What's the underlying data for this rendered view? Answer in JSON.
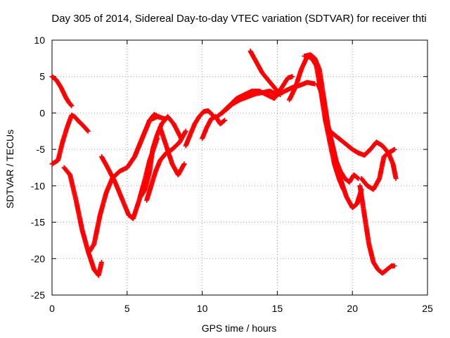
{
  "chart_data": {
    "type": "scatter",
    "title": "Day 305 of 2014, Sidereal Day-to-day VTEC variation (SDTVAR) for receiver thti",
    "xlabel": "GPS time / hours",
    "ylabel": "SDTVAR / TECUs",
    "xlim": [
      0,
      25
    ],
    "ylim": [
      -25,
      10
    ],
    "xticks": [
      0,
      5,
      10,
      15,
      20,
      25
    ],
    "yticks": [
      -25,
      -20,
      -15,
      -10,
      -5,
      0,
      5,
      10
    ],
    "xtick_labels": [
      "0",
      "5",
      "10",
      "15",
      "20",
      "25"
    ],
    "ytick_labels": [
      "-25",
      "-20",
      "-15",
      "-10",
      "-5",
      "0",
      "5",
      "10"
    ],
    "grid": true,
    "marker": "plus",
    "color": "#ff0000",
    "series": [
      {
        "x": [
          0.0,
          0.3,
          0.6,
          0.9,
          1.1,
          1.3
        ],
        "y": [
          5.0,
          4.5,
          3.5,
          2.2,
          1.5,
          1.0
        ]
      },
      {
        "x": [
          0.0,
          0.4,
          0.7,
          1.0,
          1.3,
          1.5,
          1.8,
          2.1,
          2.4
        ],
        "y": [
          -7.0,
          -6.5,
          -4.0,
          -2.0,
          -0.3,
          -0.5,
          -1.2,
          -1.8,
          -2.5
        ]
      },
      {
        "x": [
          0.8,
          1.2,
          1.6,
          2.0,
          2.4,
          2.8,
          3.1,
          3.3
        ],
        "y": [
          -7.5,
          -8.5,
          -12.0,
          -16.0,
          -19.0,
          -21.5,
          -22.3,
          -20.5
        ]
      },
      {
        "x": [
          2.5,
          2.8,
          3.2,
          3.6,
          4.0,
          4.5,
          5.0,
          5.5,
          6.0,
          6.5,
          7.0,
          7.5
        ],
        "y": [
          -19.0,
          -18.0,
          -14.0,
          -11.0,
          -9.0,
          -8.0,
          -7.5,
          -6.0,
          -3.5,
          -1.0,
          -0.5,
          -0.8
        ]
      },
      {
        "x": [
          3.3,
          3.7,
          4.2,
          4.7,
          5.1,
          5.4,
          5.8,
          6.2,
          6.5,
          7.0
        ],
        "y": [
          -6.0,
          -7.5,
          -9.5,
          -12.0,
          -14.0,
          -14.5,
          -12.0,
          -9.0,
          -6.5,
          -3.5
        ]
      },
      {
        "x": [
          5.0,
          5.5,
          5.8,
          6.1,
          6.5,
          6.8,
          7.2
        ],
        "y": [
          -7.5,
          -6.0,
          -4.5,
          -3.0,
          -1.0,
          -0.2,
          -0.6
        ]
      },
      {
        "x": [
          5.9,
          6.2,
          6.5,
          6.7,
          7.0,
          7.3,
          7.7,
          8.1,
          8.6
        ],
        "y": [
          -11.5,
          -10.5,
          -8.0,
          -5.0,
          -3.0,
          -1.5,
          -0.5,
          -1.5,
          -3.5
        ]
      },
      {
        "x": [
          7.2,
          7.6,
          8.0,
          8.4,
          8.8
        ],
        "y": [
          -2.0,
          -4.5,
          -7.0,
          -8.5,
          -7.0
        ]
      },
      {
        "x": [
          6.3,
          6.6,
          6.9,
          7.2,
          7.6,
          8.0,
          8.5,
          8.9
        ],
        "y": [
          -12.0,
          -10.0,
          -8.0,
          -6.5,
          -5.5,
          -5.0,
          -4.0,
          -2.5
        ]
      },
      {
        "x": [
          8.9,
          9.2,
          9.5,
          9.8,
          10.1,
          10.4,
          10.7
        ],
        "y": [
          -4.5,
          -3.0,
          -1.5,
          -0.5,
          0.2,
          0.3,
          -0.3
        ]
      },
      {
        "x": [
          10.0,
          10.3,
          10.6,
          10.9,
          11.2,
          11.5
        ],
        "y": [
          -3.5,
          -2.0,
          -0.8,
          -0.5,
          -1.5,
          -1.0
        ]
      },
      {
        "x": [
          11.0,
          11.5,
          12.0,
          12.5,
          13.0,
          13.5,
          14.0,
          14.5,
          15.0,
          15.5,
          16.0,
          16.5,
          17.0,
          17.5
        ],
        "y": [
          -0.5,
          0.3,
          1.2,
          1.8,
          2.2,
          2.6,
          2.8,
          3.0,
          2.5,
          3.0,
          3.5,
          3.8,
          4.2,
          4.0
        ]
      },
      {
        "x": [
          11.3,
          11.8,
          12.3,
          12.8,
          13.3,
          13.8,
          14.3,
          14.8,
          15.3,
          15.7,
          16.0
        ],
        "y": [
          0.0,
          1.0,
          2.0,
          2.5,
          3.0,
          3.0,
          2.5,
          2.0,
          3.5,
          4.8,
          5.0
        ]
      },
      {
        "x": [
          13.2,
          13.6,
          14.0,
          14.4,
          14.8,
          15.2
        ],
        "y": [
          8.5,
          7.0,
          5.5,
          4.5,
          3.5,
          2.5
        ]
      },
      {
        "x": [
          15.8,
          16.2,
          16.6,
          17.0,
          17.3,
          17.6,
          17.9,
          18.2,
          18.5,
          18.8,
          19.1,
          19.4
        ],
        "y": [
          1.8,
          3.5,
          6.0,
          7.8,
          7.5,
          6.5,
          3.0,
          -1.0,
          -4.0,
          -7.0,
          -9.0,
          -10.5
        ]
      },
      {
        "x": [
          16.8,
          17.2,
          17.5,
          17.8,
          18.1,
          18.4,
          18.8,
          19.2,
          19.6,
          20.0,
          20.3,
          20.6
        ],
        "y": [
          7.8,
          8.0,
          7.5,
          6.0,
          2.0,
          -2.0,
          -5.5,
          -9.0,
          -11.5,
          -13.0,
          -12.5,
          -10.5
        ]
      },
      {
        "x": [
          17.7,
          18.0,
          18.3,
          18.6,
          18.9,
          19.2,
          19.5,
          19.8,
          20.1,
          20.4
        ],
        "y": [
          4.0,
          2.5,
          -1.0,
          -4.0,
          -6.5,
          -8.0,
          -9.0,
          -9.5,
          -8.5,
          -9.0
        ]
      },
      {
        "x": [
          18.2,
          18.5,
          18.8,
          19.1,
          19.4,
          19.7,
          20.0,
          20.4,
          20.8,
          21.2,
          21.6,
          22.0,
          22.4,
          22.8
        ],
        "y": [
          -1.0,
          -2.5,
          -3.0,
          -3.5,
          -4.0,
          -4.5,
          -5.0,
          -5.5,
          -5.8,
          -5.0,
          -4.0,
          -4.5,
          -5.5,
          -5.0
        ]
      },
      {
        "x": [
          20.5,
          20.8,
          21.1,
          21.4,
          21.7,
          22.0,
          22.3,
          22.6,
          22.8
        ],
        "y": [
          -10.0,
          -14.0,
          -18.0,
          -20.5,
          -21.5,
          -22.0,
          -21.5,
          -21.0,
          -21.0
        ]
      },
      {
        "x": [
          20.6,
          21.0,
          21.4,
          21.8,
          22.1,
          22.4,
          22.7,
          22.9
        ],
        "y": [
          -9.0,
          -10.0,
          -10.5,
          -9.0,
          -6.0,
          -5.5,
          -7.0,
          -9.0
        ]
      }
    ]
  }
}
